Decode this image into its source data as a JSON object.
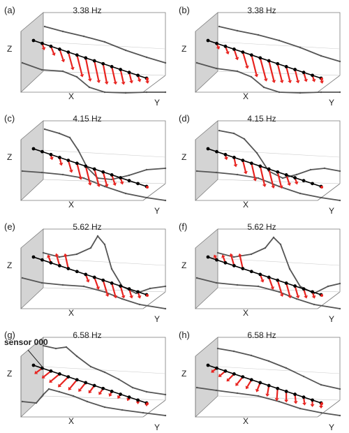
{
  "panels": [
    {
      "label": "(a)",
      "freq": "3.38 Hz",
      "x": "X",
      "y": "Y",
      "z": "Z"
    },
    {
      "label": "(b)",
      "freq": "3.38 Hz",
      "x": "X",
      "y": "Y",
      "z": "Z"
    },
    {
      "label": "(c)",
      "freq": "4.15 Hz",
      "x": "X",
      "y": "Y",
      "z": "Z"
    },
    {
      "label": "(d)",
      "freq": "4.15 Hz",
      "x": "X",
      "y": "Y",
      "z": "Z"
    },
    {
      "label": "(e)",
      "freq": "5.62 Hz",
      "x": "X",
      "y": "Y",
      "z": "Z"
    },
    {
      "label": "(f)",
      "freq": "5.62 Hz",
      "x": "X",
      "y": "Y",
      "z": "Z"
    },
    {
      "label": "(g)",
      "freq": "6.58 Hz",
      "x": "X",
      "y": "Y",
      "z": "Z",
      "annotation": "sensor 000"
    },
    {
      "label": "(h)",
      "freq": "6.58 Hz",
      "x": "X",
      "y": "Y",
      "z": "Z"
    }
  ],
  "colors": {
    "arrow": "#e8231f",
    "profile": "#555555",
    "wall": "#d4d4d4",
    "frame": "#7a7a7a",
    "sensor": "#000000"
  }
}
